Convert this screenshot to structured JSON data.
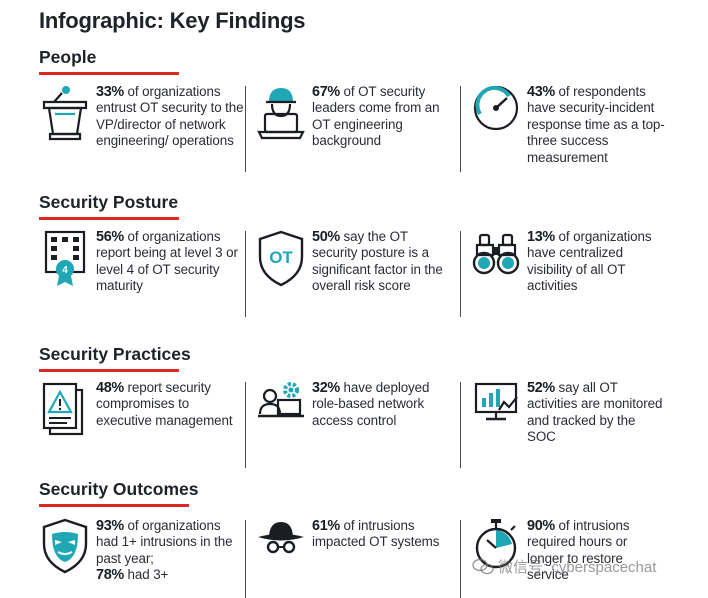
{
  "title": "Infographic: Key Findings",
  "colors": {
    "accent": "#e0281f",
    "teal": "#1fa7b5",
    "text": "#1f2329"
  },
  "watermark": "微信号: cyberspacechat",
  "sections": [
    {
      "title": "People",
      "items": [
        {
          "icon": "podium-icon",
          "stat": "33%",
          "text": " of organizations entrust OT security to the VP/director of network engineering/ operations"
        },
        {
          "icon": "engineer-laptop-icon",
          "stat": "67%",
          "text": " of OT security leaders come from an OT engineering background"
        },
        {
          "icon": "gauge-icon",
          "stat": "43%",
          "text": " of respondents have security-incident response time as a top-three success measurement"
        }
      ]
    },
    {
      "title": "Security Posture",
      "items": [
        {
          "icon": "building-badge-icon",
          "stat": "56%",
          "text": " of organizations report being at level 3 or level 4 of OT security maturity"
        },
        {
          "icon": "ot-shield-icon",
          "stat": "50%",
          "text": " say the OT security posture is a significant factor in the overall risk score"
        },
        {
          "icon": "binoculars-icon",
          "stat": "13%",
          "text": " of organizations have centralized visibility of all OT activities"
        }
      ]
    },
    {
      "title": "Security Practices",
      "items": [
        {
          "icon": "alert-document-icon",
          "stat": "48%",
          "text": " report security compromises to executive management"
        },
        {
          "icon": "gear-user-laptop-icon",
          "stat": "32%",
          "text": " have deployed role-based network access control"
        },
        {
          "icon": "monitor-chart-icon",
          "stat": "52%",
          "text": " say all OT activities are monitored and tracked by the SOC"
        }
      ]
    },
    {
      "title": "Security Outcomes",
      "items": [
        {
          "icon": "mask-shield-icon",
          "stat": "93%",
          "text": " of organizations had 1+ intrusions in the past year;",
          "stat2": "78%",
          "text2": " had 3+"
        },
        {
          "icon": "spy-icon",
          "stat": "61%",
          "text": " of intrusions impacted OT systems"
        },
        {
          "icon": "stopwatch-icon",
          "stat": "90%",
          "text": " of intrusions required hours or longer to restore service"
        }
      ]
    }
  ]
}
